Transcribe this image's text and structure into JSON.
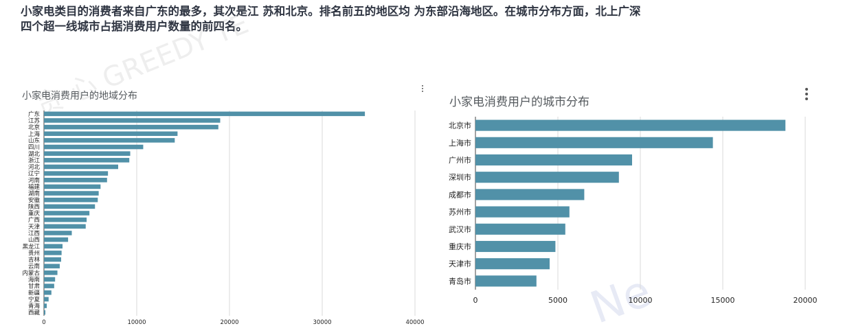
{
  "headline": {
    "line1": "小家电类目的消费者来自广东的最多，其次是江 苏和北京。排名前五的地区均 为东部沿海地区。在城市分布方面，北上广深",
    "line2": "四个超一线城市占据消费用户数量的前四名。"
  },
  "watermark": {
    "text": "贪 心 GREEDY TE",
    "text2": "Ne"
  },
  "colors": {
    "bar": "#5191a8",
    "grid": "#d9d9d9",
    "text": "#222222"
  },
  "chart_data": [
    {
      "type": "bar",
      "orientation": "horizontal",
      "title": "小家电消费用户的地域分布",
      "categories": [
        "广东",
        "江苏",
        "北京",
        "上海",
        "山东",
        "四川",
        "湖北",
        "浙江",
        "河北",
        "辽宁",
        "河南",
        "福建",
        "湖南",
        "安徽",
        "陕西",
        "重庆",
        "广西",
        "天津",
        "江西",
        "山西",
        "黑龙江",
        "贵州",
        "吉林",
        "云南",
        "内蒙古",
        "海南",
        "甘肃",
        "新疆",
        "宁夏",
        "青海",
        "西藏"
      ],
      "values": [
        34600,
        19000,
        18800,
        14400,
        14100,
        10700,
        9300,
        9200,
        8000,
        6900,
        6800,
        6100,
        5900,
        5800,
        5500,
        4900,
        4600,
        4500,
        3000,
        2600,
        2000,
        1900,
        1850,
        1700,
        1450,
        1200,
        1100,
        800,
        500,
        300,
        150
      ],
      "xlim": [
        0,
        40000
      ],
      "xticks": [
        0,
        10000,
        20000,
        30000,
        40000
      ],
      "grid": true
    },
    {
      "type": "bar",
      "orientation": "horizontal",
      "title": "小家电消费用户的城市分布",
      "categories": [
        "北京市",
        "上海市",
        "广州市",
        "深圳市",
        "成都市",
        "苏州市",
        "武汉市",
        "重庆市",
        "天津市",
        "青岛市"
      ],
      "values": [
        18800,
        14400,
        9500,
        8700,
        6600,
        5700,
        5450,
        4850,
        4500,
        3700
      ],
      "xlim": [
        0,
        20000
      ],
      "xticks": [
        0,
        5000,
        10000,
        15000,
        20000
      ],
      "grid": true
    }
  ]
}
